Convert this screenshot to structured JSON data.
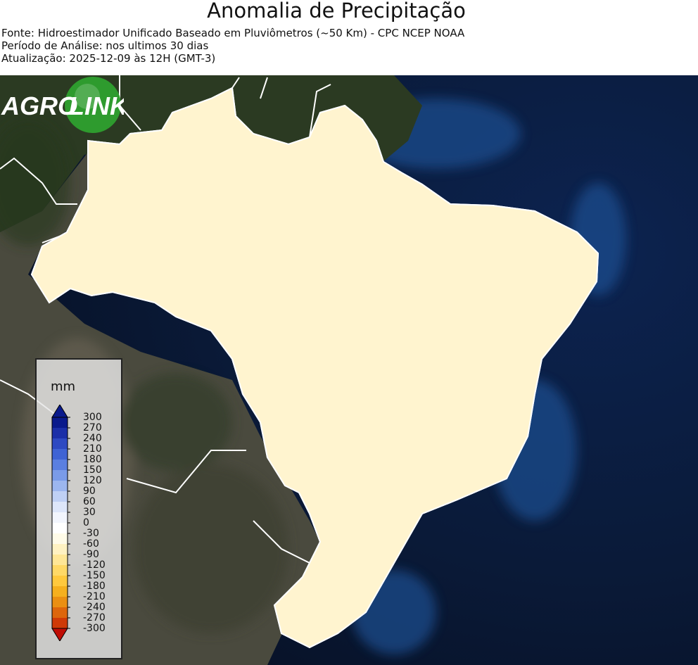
{
  "header": {
    "title": "Anomalia de Precipitação",
    "source": "Fonte: Hidroestimador Unificado Baseado em Pluviômetros (~50 Km) - CPC NCEP NOAA",
    "period": "Período de Análise: nos ultimos 30 dias",
    "updated": "Atualização: 2025-12-09 às 12H (GMT-3)"
  },
  "legend": {
    "unit": "mm",
    "ticks": [
      "300",
      "270",
      "240",
      "210",
      "180",
      "150",
      "120",
      "90",
      "60",
      "30",
      "0",
      "-30",
      "-60",
      "-90",
      "-120",
      "-150",
      "-180",
      "-210",
      "-240",
      "-270",
      "-300"
    ],
    "colors": [
      "#0a1a8c",
      "#1b2fa8",
      "#2d49c2",
      "#3f63d4",
      "#5a7fe0",
      "#7a9be8",
      "#9cb6ef",
      "#bfd0f5",
      "#dde6fa",
      "#f2f5fd",
      "#ffffff",
      "#fffbe8",
      "#fff2c2",
      "#ffe796",
      "#ffd966",
      "#ffc93d",
      "#f5b01e",
      "#ea8f12",
      "#dd660c",
      "#cf3a07",
      "#bf0d05"
    ]
  },
  "logo": {
    "word1": "AGRO",
    "word2": "LINK",
    "green": "#2e9b2e"
  }
}
